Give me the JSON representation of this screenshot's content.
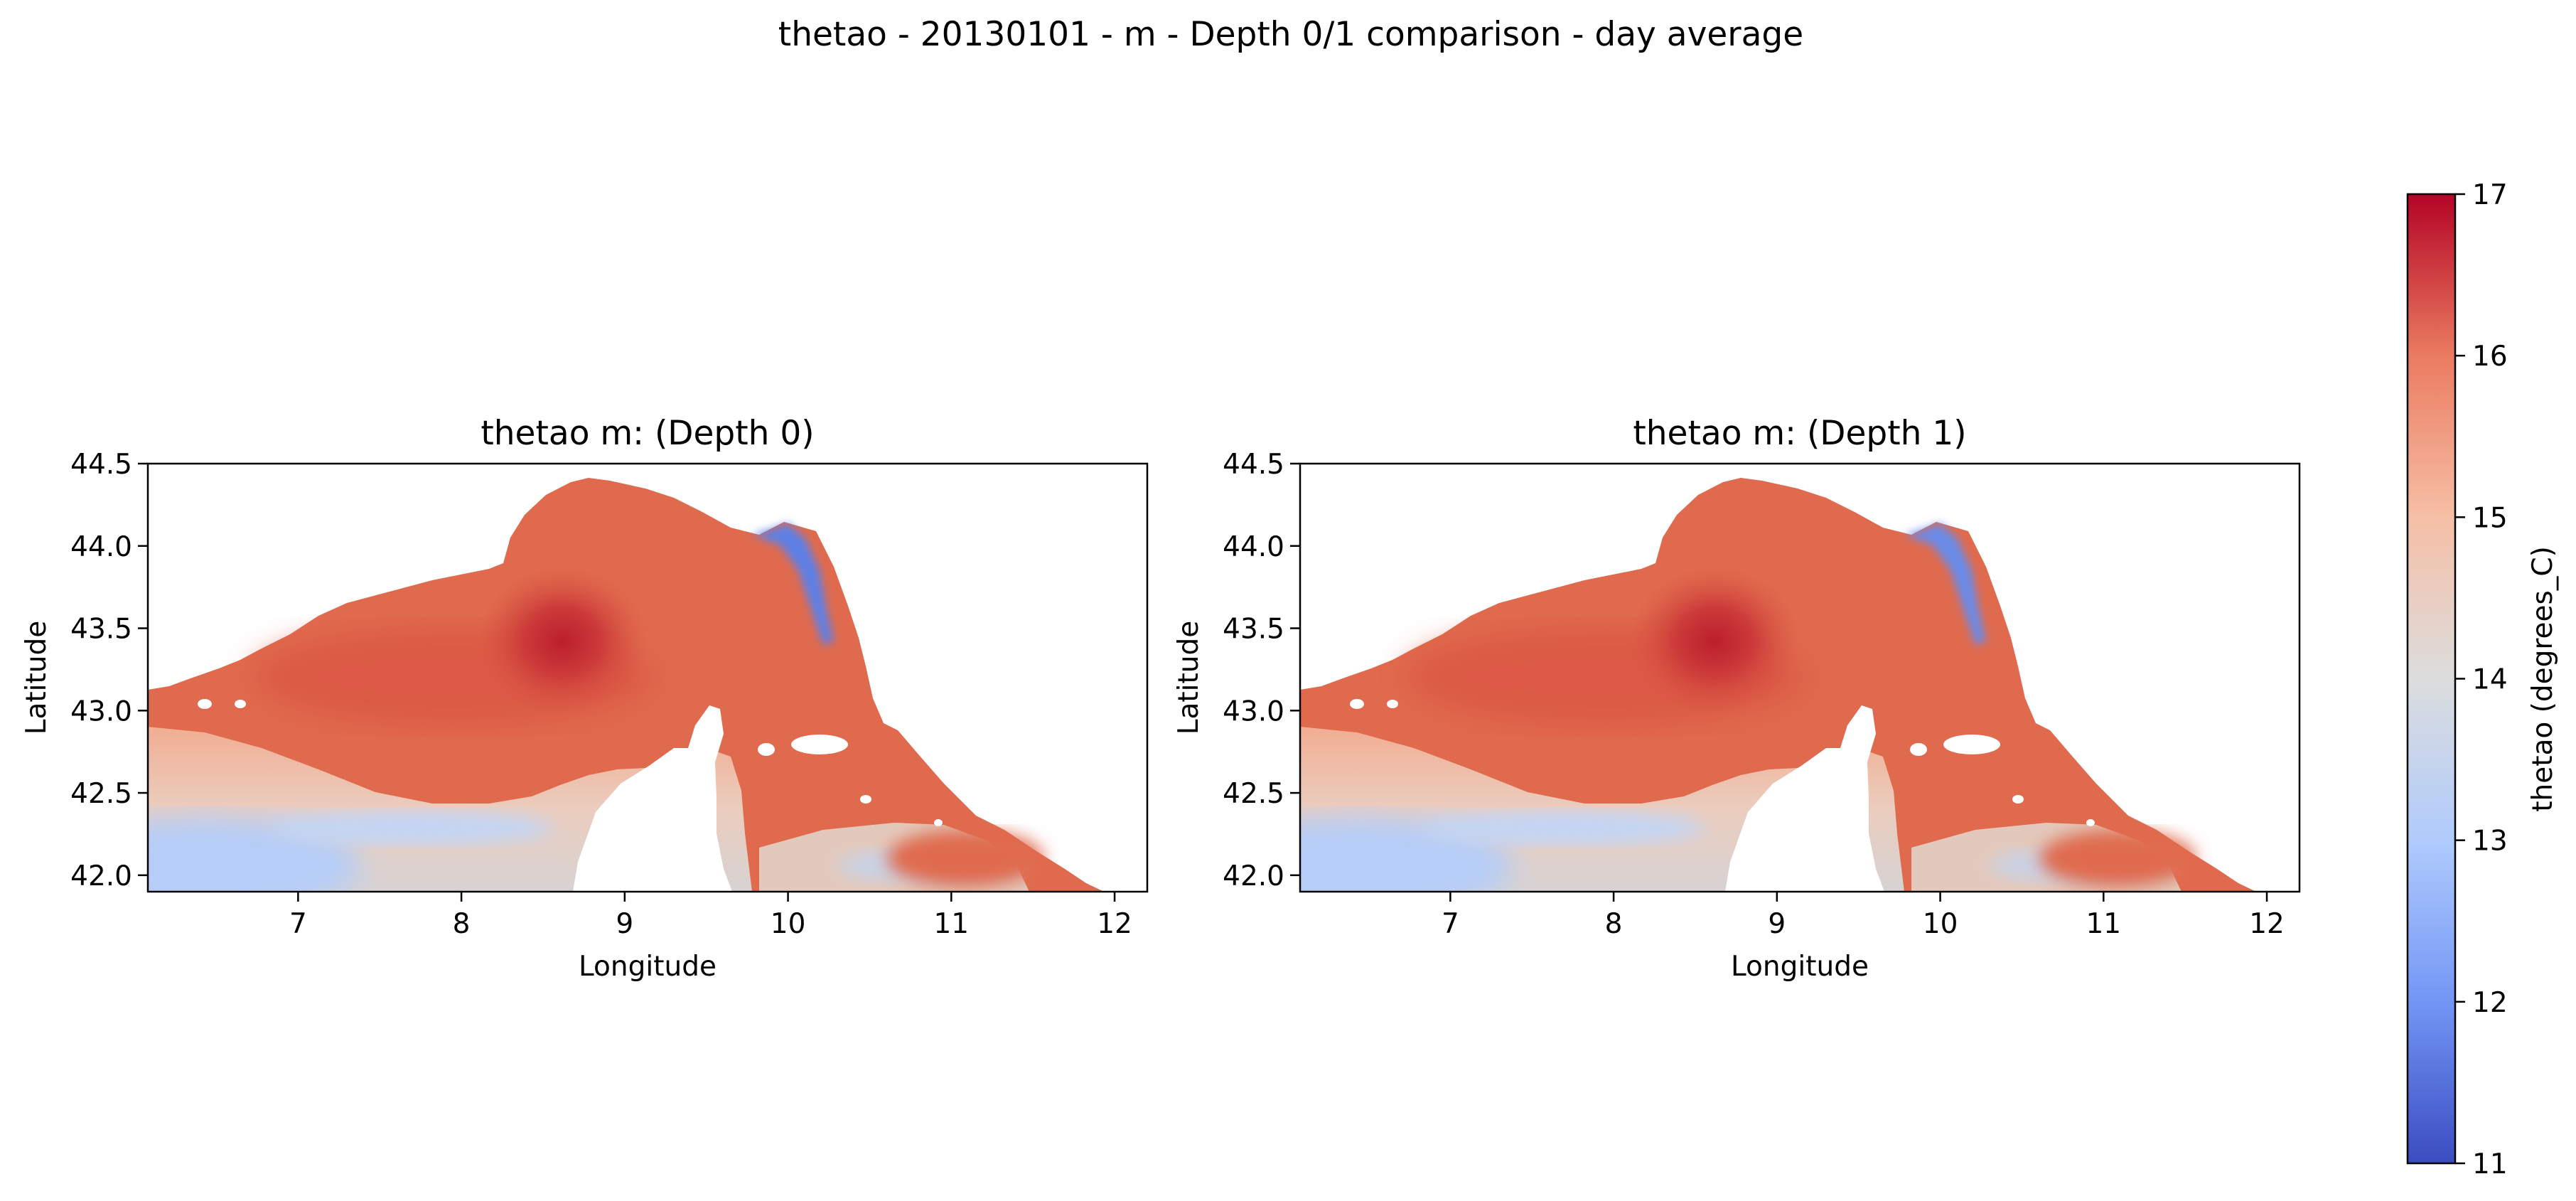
{
  "suptitle": "thetao - 20130101 - m - Depth 0/1 comparison - day average",
  "chart_data": [
    {
      "type": "heatmap",
      "title": "thetao m: (Depth 0)",
      "xlabel": "Longitude",
      "ylabel": "Latitude",
      "xlim": [
        6.08,
        12.2
      ],
      "ylim": [
        41.9,
        44.5
      ],
      "xticks": [
        "7",
        "8",
        "9",
        "10",
        "11",
        "12"
      ],
      "yticks": [
        "42.0",
        "42.5",
        "43.0",
        "43.5",
        "44.0",
        "44.5"
      ],
      "colormap": "coolwarm",
      "value_range": [
        11,
        17
      ],
      "features": [
        {
          "kind": "eddy_max",
          "lon": 8.6,
          "lat": 43.4,
          "value": 16.8
        },
        {
          "kind": "coastal_min",
          "lon": 10.25,
          "lat": 43.9,
          "value": 11.4
        },
        {
          "kind": "southwest_cool",
          "lon": 6.7,
          "lat": 42.1,
          "value": 13.3
        },
        {
          "kind": "land_mask",
          "name": "Corsica",
          "lon": [
            8.6,
            9.5
          ],
          "lat": [
            41.9,
            43.0
          ]
        }
      ]
    },
    {
      "type": "heatmap",
      "title": "thetao m: (Depth 1)",
      "xlabel": "Longitude",
      "ylabel": "Latitude",
      "xlim": [
        6.08,
        12.2
      ],
      "ylim": [
        41.9,
        44.5
      ],
      "xticks": [
        "7",
        "8",
        "9",
        "10",
        "11",
        "12"
      ],
      "yticks": [
        "42.0",
        "42.5",
        "43.0",
        "43.5",
        "44.0",
        "44.5"
      ],
      "colormap": "coolwarm",
      "value_range": [
        11,
        17
      ],
      "features": [
        {
          "kind": "eddy_max",
          "lon": 8.6,
          "lat": 43.4,
          "value": 16.8
        },
        {
          "kind": "coastal_min",
          "lon": 10.25,
          "lat": 43.9,
          "value": 11.4
        },
        {
          "kind": "southwest_cool",
          "lon": 6.7,
          "lat": 42.1,
          "value": 13.3
        },
        {
          "kind": "land_mask",
          "name": "Corsica",
          "lon": [
            8.6,
            9.5
          ],
          "lat": [
            41.9,
            43.0
          ]
        }
      ]
    }
  ],
  "colorbar": {
    "label": "thetao (degrees_C)",
    "ticks": [
      "11",
      "12",
      "13",
      "14",
      "15",
      "16",
      "17"
    ],
    "colors": [
      "#3b4cc0",
      "#7396f5",
      "#b0cbfc",
      "#dcdddd",
      "#f6bfa6",
      "#ea7b60",
      "#b40426"
    ]
  }
}
